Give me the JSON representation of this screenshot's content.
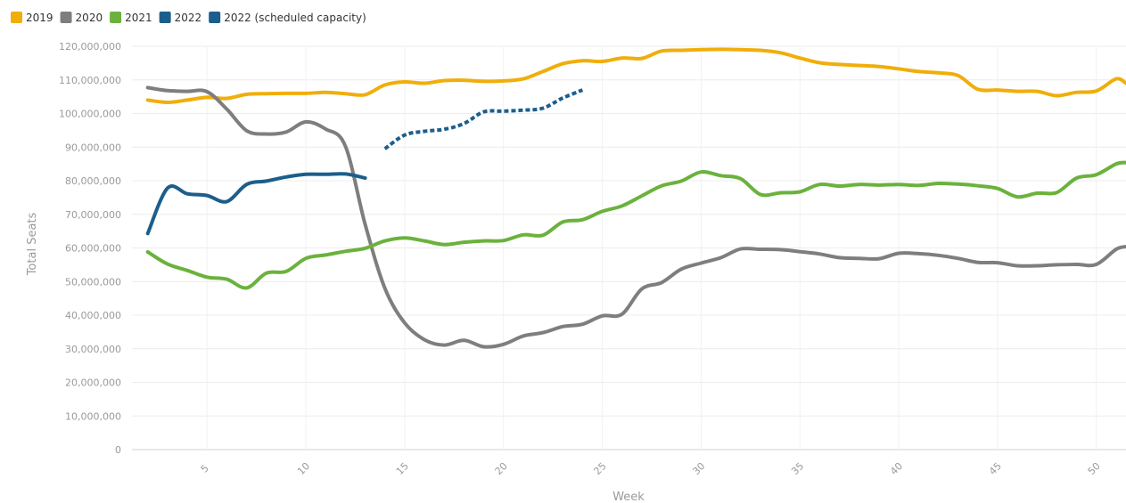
{
  "chart_data": {
    "type": "line",
    "xlabel": "Week",
    "ylabel": "Total Seats",
    "xlim": [
      1.2,
      51.5
    ],
    "ylim": [
      0,
      120000000
    ],
    "x_ticks": [
      5,
      10,
      15,
      20,
      25,
      30,
      35,
      40,
      45,
      50
    ],
    "y_ticks": [
      {
        "value": 0,
        "label": "0"
      },
      {
        "value": 10000000,
        "label": "10,000,000"
      },
      {
        "value": 20000000,
        "label": "20,000,000"
      },
      {
        "value": 30000000,
        "label": "30,000,000"
      },
      {
        "value": 40000000,
        "label": "40,000,000"
      },
      {
        "value": 50000000,
        "label": "50,000,000"
      },
      {
        "value": 60000000,
        "label": "60,000,000"
      },
      {
        "value": 70000000,
        "label": "70,000,000"
      },
      {
        "value": 80000000,
        "label": "80,000,000"
      },
      {
        "value": 90000000,
        "label": "90,000,000"
      },
      {
        "value": 100000000,
        "label": "100,000,000"
      },
      {
        "value": 110000000,
        "label": "110,000,000"
      },
      {
        "value": 120000000,
        "label": "120,000,000"
      }
    ],
    "grid": true,
    "legend_position": "top-left",
    "series": [
      {
        "name": "2019",
        "color": "#F0AE0B",
        "dashed": false,
        "x": [
          2,
          3,
          4,
          5,
          6,
          7,
          8,
          9,
          10,
          11,
          12,
          13,
          14,
          15,
          16,
          17,
          18,
          19,
          20,
          21,
          22,
          23,
          24,
          25,
          26,
          27,
          28,
          29,
          30,
          31,
          32,
          33,
          34,
          35,
          36,
          37,
          38,
          39,
          40,
          41,
          42,
          43,
          44,
          45,
          46,
          47,
          48,
          49,
          50,
          51,
          51.5
        ],
        "y": [
          104000000,
          103300000,
          104000000,
          104800000,
          104500000,
          105700000,
          105900000,
          106000000,
          106000000,
          106300000,
          105900000,
          105600000,
          108500000,
          109400000,
          109000000,
          109800000,
          109900000,
          109600000,
          109700000,
          110300000,
          112500000,
          114800000,
          115700000,
          115500000,
          116500000,
          116400000,
          118600000,
          118800000,
          119000000,
          119100000,
          119000000,
          118800000,
          118100000,
          116500000,
          115100000,
          114600000,
          114300000,
          114000000,
          113300000,
          112500000,
          112100000,
          111300000,
          107200000,
          107000000,
          106600000,
          106600000,
          105300000,
          106300000,
          106700000,
          110300000,
          109000000
        ]
      },
      {
        "name": "2020",
        "color": "#7E7E7E",
        "dashed": false,
        "x": [
          2,
          3,
          4,
          5,
          6,
          7,
          8,
          9,
          10,
          11,
          12,
          13,
          14,
          15,
          16,
          17,
          18,
          19,
          20,
          21,
          22,
          23,
          24,
          25,
          26,
          27,
          28,
          29,
          30,
          31,
          32,
          33,
          34,
          35,
          36,
          37,
          38,
          39,
          40,
          41,
          42,
          43,
          44,
          45,
          46,
          47,
          48,
          49,
          50,
          51,
          51.5
        ],
        "y": [
          107700000,
          106800000,
          106600000,
          106500000,
          101300000,
          94900000,
          93900000,
          94500000,
          97500000,
          95400000,
          90300000,
          67000000,
          48000000,
          37700000,
          32700000,
          31100000,
          32500000,
          30600000,
          31300000,
          33800000,
          34800000,
          36600000,
          37300000,
          39800000,
          40300000,
          47800000,
          49700000,
          53700000,
          55500000,
          57100000,
          59700000,
          59600000,
          59500000,
          58900000,
          58200000,
          57100000,
          56900000,
          56800000,
          58400000,
          58300000,
          57800000,
          56900000,
          55700000,
          55600000,
          54700000,
          54700000,
          55000000,
          55100000,
          55100000,
          59600000,
          60400000
        ]
      },
      {
        "name": "2021",
        "color": "#6AB23D",
        "dashed": false,
        "x": [
          2,
          3,
          4,
          5,
          6,
          7,
          8,
          9,
          10,
          11,
          12,
          13,
          14,
          15,
          16,
          17,
          18,
          19,
          20,
          21,
          22,
          23,
          24,
          25,
          26,
          27,
          28,
          29,
          30,
          31,
          32,
          33,
          34,
          35,
          36,
          37,
          38,
          39,
          40,
          41,
          42,
          43,
          44,
          45,
          46,
          47,
          48,
          49,
          50,
          51,
          51.5
        ],
        "y": [
          58800000,
          55200000,
          53300000,
          51300000,
          50700000,
          48100000,
          52500000,
          53000000,
          56900000,
          57900000,
          59000000,
          59900000,
          62100000,
          63000000,
          62100000,
          61000000,
          61700000,
          62100000,
          62200000,
          63900000,
          63800000,
          67700000,
          68400000,
          70900000,
          72500000,
          75500000,
          78500000,
          79900000,
          82600000,
          81500000,
          80600000,
          75900000,
          76400000,
          76700000,
          78900000,
          78400000,
          78900000,
          78700000,
          78900000,
          78600000,
          79200000,
          79000000,
          78500000,
          77700000,
          75200000,
          76300000,
          76500000,
          80800000,
          81800000,
          85000000,
          85400000
        ]
      },
      {
        "name": "2022",
        "color": "#1B5E8C",
        "dashed": false,
        "x": [
          2,
          3,
          4,
          5,
          6,
          7,
          8,
          9,
          10,
          11,
          12,
          13
        ],
        "y": [
          64300000,
          77800000,
          76100000,
          75600000,
          73800000,
          78900000,
          79900000,
          81100000,
          81900000,
          81900000,
          82000000,
          80800000
        ]
      },
      {
        "name": "2022 (scheduled capacity)",
        "color": "#1B5E8C",
        "dashed": true,
        "x": [
          14,
          15,
          16,
          17,
          18,
          19,
          20,
          21,
          22,
          23,
          24
        ],
        "y": [
          89500000,
          93600000,
          94700000,
          95300000,
          97000000,
          100500000,
          100700000,
          101000000,
          101600000,
          104600000,
          107000000
        ]
      }
    ]
  }
}
